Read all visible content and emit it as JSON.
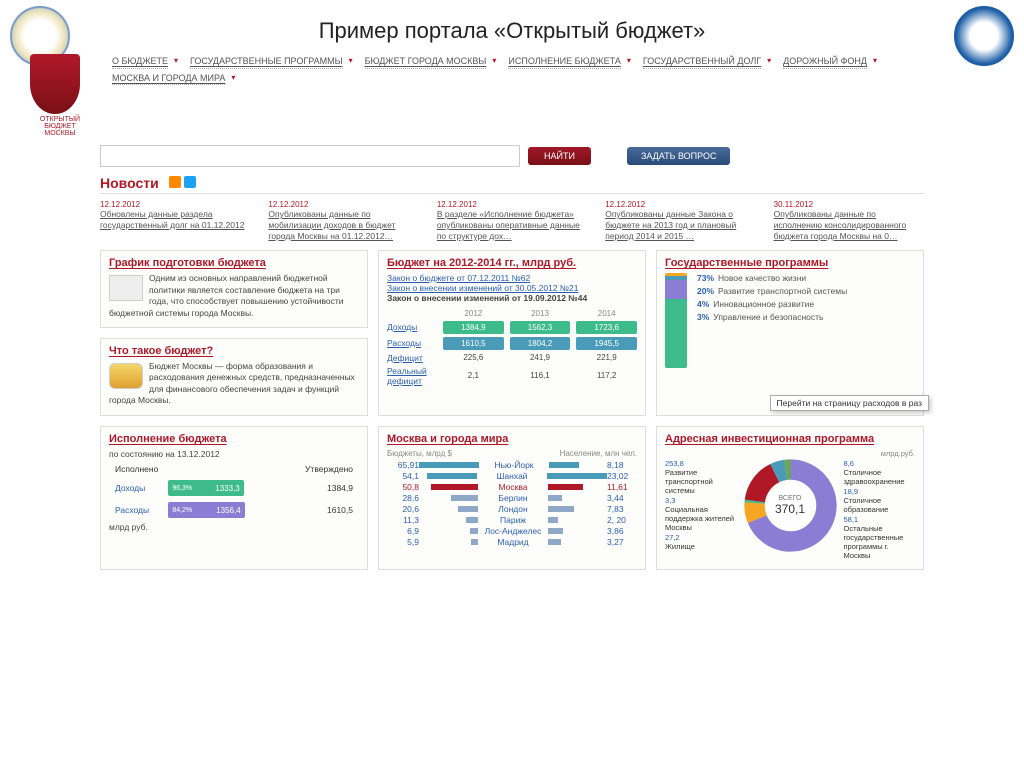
{
  "slide_title": "Пример портала «Открытый бюджет»",
  "coat_label": "ОТКРЫТЫЙ БЮДЖЕТ МОСКВЫ",
  "nav": [
    "О БЮДЖЕТЕ",
    "ГОСУДАРСТВЕННЫЕ ПРОГРАММЫ",
    "БЮДЖЕТ ГОРОДА МОСКВЫ",
    "ИСПОЛНЕНИЕ БЮДЖЕТА",
    "ГОСУДАРСТВЕННЫЙ ДОЛГ",
    "ДОРОЖНЫЙ ФОНД",
    "МОСКВА И ГОРОДА МИРА"
  ],
  "search": {
    "placeholder": "",
    "find": "НАЙТИ",
    "ask": "ЗАДАТЬ ВОПРОС"
  },
  "news_header": "Новости",
  "news": [
    {
      "date": "12.12.2012",
      "txt": "Обновлены данные раздела государственный долг на 01.12.2012"
    },
    {
      "date": "12.12.2012",
      "txt": "Опубликованы данные по мобилизации доходов в бюджет города Москвы на 01.12.2012…"
    },
    {
      "date": "12.12.2012",
      "txt": "В разделе «Исполнение бюджета» опубликованы оперативные данные по структуре дох…"
    },
    {
      "date": "12.12.2012",
      "txt": "Опубликованы данные Закона о бюджете на 2013 год и плановый период 2014 и 2015 …"
    },
    {
      "date": "30.11.2012",
      "txt": "Опубликованы данные по исполнению консолидированного бюджета города Москвы на 0…"
    }
  ],
  "w_schedule": {
    "title": "График подготовки бюджета",
    "text": "Одним из основных направлений бюджетной политики является составление бюджета на три года, что способствует повышению устойчивости бюджетной системы города Москвы."
  },
  "w_what": {
    "title": "Что такое бюджет?",
    "text": "Бюджет Москвы — форма образования и расходования денежных средств, предназначенных для финансового обеспечения задач и функций города Москвы."
  },
  "w_budget": {
    "title": "Бюджет на 2012-2014 гг., млрд руб.",
    "law1": "Закон о бюджете от 07.12.2011 №62",
    "law2": "Закон о внесении изменений от 30.05.2012 №21",
    "law3": "Закон о внесении изменений от 19.09.2012 №44",
    "years": [
      "2012",
      "2013",
      "2014"
    ],
    "rows": [
      {
        "label": "Доходы",
        "vals": [
          "1384,9",
          "1562,3",
          "1723,6"
        ],
        "color": "#3dbb8b"
      },
      {
        "label": "Расходы",
        "vals": [
          "1610,5",
          "1804,2",
          "1945,5"
        ],
        "color": "#4a9bb8"
      },
      {
        "label": "Дефицит",
        "vals": [
          "225,6",
          "241,9",
          "221,9"
        ],
        "plain": true
      },
      {
        "label": "Реальный дефицит",
        "vals": [
          "2,1",
          "116,1",
          "117,2"
        ],
        "plain": true
      }
    ]
  },
  "w_programs": {
    "title": "Государственные программы",
    "stack": [
      {
        "pct": 73,
        "label": "Новое качество жизни",
        "color": "#3dbb8b"
      },
      {
        "pct": 20,
        "label": "Развитие транспортной системы",
        "color": "#8c7dd4"
      },
      {
        "pct": 4,
        "label": "Инновационное развитие",
        "color": "#4a9bb8"
      },
      {
        "pct": 3,
        "label": "Управление и безопасность",
        "color": "#f5a623"
      }
    ],
    "tooltip": "Перейти на страницу расходов в раз"
  },
  "w_exec": {
    "title": "Исполнение бюджета",
    "asof": "по состоянию на 13.12.2012",
    "col_left": "Исполнено",
    "col_right": "Утверждено",
    "rows": [
      {
        "label": "Доходы",
        "exec": "1333,3",
        "pct": "96,3%",
        "appr": "1384,9",
        "color": "#3dbb8b",
        "w": 83
      },
      {
        "label": "Расходы",
        "exec": "1356,4",
        "pct": "84,2%",
        "appr": "1610,5",
        "color": "#8c7dd4",
        "w": 84
      }
    ],
    "unit": "млрд руб."
  },
  "w_cities": {
    "title": "Москва и города мира",
    "hdr_b": "Бюджеты, млрд $",
    "hdr_p": "Население, млн чел.",
    "rows": [
      {
        "b": "65,91",
        "name": "Нью-Йорк",
        "p": "8,18",
        "bc": "#4a9bb8",
        "pc": "#4a9bb8",
        "bw": 60,
        "pw": 30
      },
      {
        "b": "54,1",
        "name": "Шанхай",
        "p": "23,02",
        "bc": "#4a9bb8",
        "pc": "#4a9bb8",
        "bw": 50,
        "pw": 60
      },
      {
        "b": "50,8",
        "name": "Москва",
        "p": "11,61",
        "bc": "#b01828",
        "pc": "#b01828",
        "bw": 47,
        "pw": 35,
        "msk": true
      },
      {
        "b": "28,6",
        "name": "Берлин",
        "p": "3,44",
        "bc": "#8fa8c8",
        "pc": "#8fa8c8",
        "bw": 27,
        "pw": 14
      },
      {
        "b": "20,6",
        "name": "Лондон",
        "p": "7,83",
        "bc": "#8fa8c8",
        "pc": "#8fa8c8",
        "bw": 20,
        "pw": 26
      },
      {
        "b": "11,3",
        "name": "Париж",
        "p": "2, 20",
        "bc": "#8fa8c8",
        "pc": "#8fa8c8",
        "bw": 12,
        "pw": 10
      },
      {
        "b": "6,9",
        "name": "Лос-Анджелес",
        "p": "3,86",
        "bc": "#8fa8c8",
        "pc": "#8fa8c8",
        "bw": 8,
        "pw": 15
      },
      {
        "b": "5,9",
        "name": "Мадрид",
        "p": "3,27",
        "bc": "#8fa8c8",
        "pc": "#8fa8c8",
        "bw": 7,
        "pw": 13
      }
    ]
  },
  "w_invest": {
    "title": "Адресная инвестиционная программа",
    "unit": "млрд.руб.",
    "total_label": "ВСЕГО",
    "total": "370,1",
    "left": [
      {
        "v": "253,8",
        "t": "Развитие транспортной системы"
      },
      {
        "v": "3,3",
        "t": "Социальная поддержка жителей Москвы"
      },
      {
        "v": "27,2",
        "t": "Жилище"
      }
    ],
    "right": [
      {
        "v": "8,6",
        "t": "Столичное здравоохранение"
      },
      {
        "v": "18,9",
        "t": "Столичное образование"
      },
      {
        "v": "58,1",
        "t": "Остальные государственные программы г. Москвы"
      }
    ],
    "segments": [
      {
        "c": "#8c7dd4",
        "d": 253.8
      },
      {
        "c": "#f5a623",
        "d": 27.2
      },
      {
        "c": "#3dbb8b",
        "d": 3.3
      },
      {
        "c": "#b01828",
        "d": 58.1
      },
      {
        "c": "#4a9bb8",
        "d": 18.9
      },
      {
        "c": "#6aa84f",
        "d": 8.6
      }
    ]
  }
}
